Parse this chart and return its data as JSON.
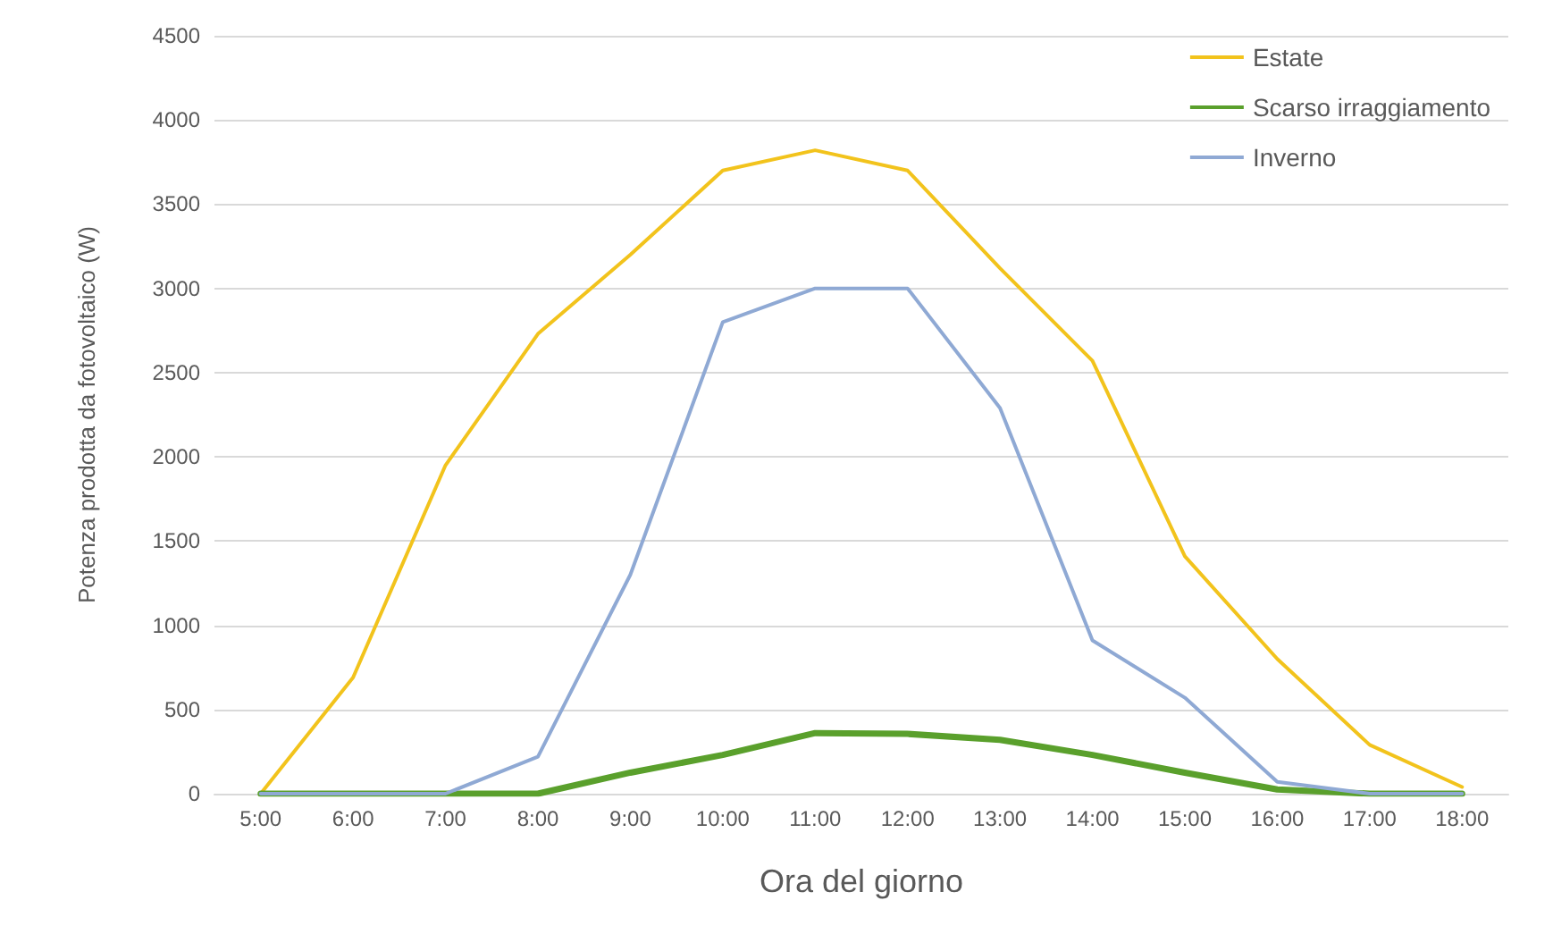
{
  "chart_data": {
    "type": "line",
    "xlabel": "Ora del giorno",
    "ylabel": "Potenza prodotta da fotovoltaico (W)",
    "categories": [
      "5:00",
      "6:00",
      "7:00",
      "8:00",
      "9:00",
      "10:00",
      "11:00",
      "12:00",
      "13:00",
      "14:00",
      "15:00",
      "16:00",
      "17:00",
      "18:00"
    ],
    "series": [
      {
        "name": "Estate",
        "color": "#f2c31c",
        "values": [
          0,
          690,
          1950,
          2730,
          3200,
          3700,
          3820,
          3700,
          3120,
          2570,
          1410,
          800,
          290,
          40
        ]
      },
      {
        "name": "Scarso irraggiamento",
        "color": "#5aa02c",
        "values": [
          0,
          0,
          0,
          0,
          125,
          230,
          360,
          355,
          320,
          230,
          125,
          25,
          0,
          0
        ]
      },
      {
        "name": "Inverno",
        "color": "#8fa9d4",
        "values": [
          0,
          0,
          0,
          220,
          1300,
          2800,
          3000,
          3000,
          2290,
          910,
          570,
          70,
          0,
          0
        ]
      }
    ],
    "ylim": [
      0,
      4500
    ],
    "yticks": [
      0,
      500,
      1000,
      1500,
      2000,
      2500,
      3000,
      3500,
      4000,
      4500
    ],
    "grid": "y",
    "legend": "top right",
    "marker": "none",
    "line_style": "solid"
  }
}
